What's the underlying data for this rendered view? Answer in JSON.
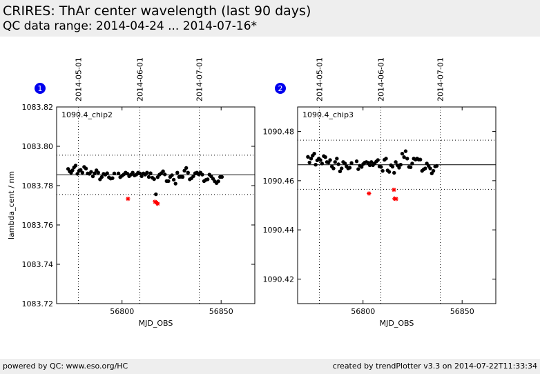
{
  "header": {
    "title": "CRIRES: ThAr center wavelength (last 90 days)",
    "subtitle": "QC data range: 2014-04-24 ... 2014-07-16*"
  },
  "footer": {
    "left": "powered by QC: www.eso.org/HC",
    "right": "created by trendPlotter v3.3 on 2014-07-22T11:33:34"
  },
  "colors": {
    "point": "#000000",
    "outlier": "#ff0000",
    "badge": "#0000ee",
    "panel_bg": "#eeeeee"
  },
  "chart_data": [
    {
      "type": "scatter",
      "badge": "1",
      "label": "1090.4_chip2",
      "xlabel": "MJD_OBS",
      "ylabel": "lambda_cent / nm",
      "xlim": [
        56767,
        56867
      ],
      "ylim": [
        1083.72,
        1083.82
      ],
      "xticks": [
        56800,
        56850
      ],
      "yticks": [
        1083.72,
        1083.74,
        1083.76,
        1083.78,
        1083.8,
        1083.82
      ],
      "ytick_decimals": 2,
      "date_markers": [
        {
          "label": "2014-05-01",
          "mjd": 56778
        },
        {
          "label": "2014-06-01",
          "mjd": 56809
        },
        {
          "label": "2014-07-01",
          "mjd": 56839
        }
      ],
      "mean": 1083.7855,
      "band": [
        1083.7755,
        1083.7955
      ],
      "points": [
        [
          56772.8,
          1083.7885
        ],
        [
          56773.6,
          1083.7872
        ],
        [
          56774.3,
          1083.7866
        ],
        [
          56775.0,
          1083.7878
        ],
        [
          56775.8,
          1083.7893
        ],
        [
          56776.6,
          1083.7902
        ],
        [
          56777.5,
          1083.786
        ],
        [
          56778.3,
          1083.7875
        ],
        [
          56779.1,
          1083.788
        ],
        [
          56780.0,
          1083.7866
        ],
        [
          56780.9,
          1083.7895
        ],
        [
          56781.8,
          1083.7887
        ],
        [
          56782.7,
          1083.7862
        ],
        [
          56783.5,
          1083.786
        ],
        [
          56784.4,
          1083.787
        ],
        [
          56785.3,
          1083.7847
        ],
        [
          56786.2,
          1083.7863
        ],
        [
          56787.1,
          1083.7878
        ],
        [
          56788.0,
          1083.7866
        ],
        [
          56788.9,
          1083.7832
        ],
        [
          56789.8,
          1083.7844
        ],
        [
          56790.7,
          1083.786
        ],
        [
          56791.6,
          1083.7856
        ],
        [
          56792.5,
          1083.7863
        ],
        [
          56793.4,
          1083.7842
        ],
        [
          56794.3,
          1083.7836
        ],
        [
          56795.2,
          1083.7838
        ],
        [
          56796.1,
          1083.7862
        ],
        [
          56798.2,
          1083.7862
        ],
        [
          56799.1,
          1083.7843
        ],
        [
          56800.0,
          1083.785
        ],
        [
          56800.9,
          1083.7857
        ],
        [
          56801.8,
          1083.7866
        ],
        [
          56802.7,
          1083.7861
        ],
        [
          56803.6,
          1083.7848
        ],
        [
          56804.5,
          1083.7856
        ],
        [
          56805.4,
          1083.7866
        ],
        [
          56806.3,
          1083.7852
        ],
        [
          56807.2,
          1083.7856
        ],
        [
          56808.1,
          1083.7866
        ],
        [
          56809.0,
          1083.7862
        ],
        [
          56809.9,
          1083.7848
        ],
        [
          56810.8,
          1083.7862
        ],
        [
          56811.7,
          1083.7856
        ],
        [
          56812.6,
          1083.7866
        ],
        [
          56813.5,
          1083.7844
        ],
        [
          56814.4,
          1083.7863
        ],
        [
          56815.3,
          1083.784
        ],
        [
          56816.2,
          1083.7833
        ],
        [
          56817.1,
          1083.7756
        ],
        [
          56818.0,
          1083.7843
        ],
        [
          56818.9,
          1083.7856
        ],
        [
          56819.8,
          1083.7863
        ],
        [
          56820.7,
          1083.7873
        ],
        [
          56821.6,
          1083.7857
        ],
        [
          56822.5,
          1083.7823
        ],
        [
          56823.4,
          1083.7823
        ],
        [
          56824.3,
          1083.7844
        ],
        [
          56825.2,
          1083.7853
        ],
        [
          56826.1,
          1083.783
        ],
        [
          56827.0,
          1083.781
        ],
        [
          56827.9,
          1083.7866
        ],
        [
          56828.8,
          1083.7844
        ],
        [
          56829.7,
          1083.7845
        ],
        [
          56830.6,
          1083.7844
        ],
        [
          56831.5,
          1083.7876
        ],
        [
          56832.4,
          1083.789
        ],
        [
          56833.3,
          1083.7866
        ],
        [
          56834.2,
          1083.7832
        ],
        [
          56835.1,
          1083.7838
        ],
        [
          56836.0,
          1083.7848
        ],
        [
          56836.9,
          1083.7863
        ],
        [
          56837.8,
          1083.7866
        ],
        [
          56838.7,
          1083.7857
        ],
        [
          56839.6,
          1083.7866
        ],
        [
          56840.5,
          1083.7856
        ],
        [
          56841.4,
          1083.7823
        ],
        [
          56842.3,
          1083.7829
        ],
        [
          56843.2,
          1083.7832
        ],
        [
          56844.1,
          1083.7856
        ],
        [
          56845.0,
          1083.7847
        ],
        [
          56845.9,
          1083.7835
        ],
        [
          56846.8,
          1083.7822
        ],
        [
          56847.7,
          1083.7813
        ],
        [
          56848.6,
          1083.7822
        ],
        [
          56849.5,
          1083.7844
        ],
        [
          56850.4,
          1083.7844
        ]
      ],
      "outliers": [
        [
          56803.0,
          1083.7733
        ],
        [
          56816.6,
          1083.7718
        ],
        [
          56817.3,
          1083.7714
        ],
        [
          56818.0,
          1083.7708
        ]
      ]
    },
    {
      "type": "scatter",
      "badge": "2",
      "label": "1090.4_chip3",
      "xlabel": "MJD_OBS",
      "ylabel": "",
      "xlim": [
        56767,
        56867
      ],
      "ylim": [
        1090.41,
        1090.49
      ],
      "xticks": [
        56800,
        56850
      ],
      "yticks": [
        1090.42,
        1090.44,
        1090.46,
        1090.48
      ],
      "ytick_decimals": 2,
      "date_markers": [
        {
          "label": "2014-05-01",
          "mjd": 56778
        },
        {
          "label": "2014-06-01",
          "mjd": 56809
        },
        {
          "label": "2014-07-01",
          "mjd": 56839
        }
      ],
      "mean": 1090.4665,
      "band": [
        1090.4565,
        1090.4765
      ],
      "points": [
        [
          56772.2,
          1090.4697
        ],
        [
          56773.0,
          1090.4674
        ],
        [
          56773.8,
          1090.469
        ],
        [
          56774.6,
          1090.4702
        ],
        [
          56775.4,
          1090.471
        ],
        [
          56776.1,
          1090.4665
        ],
        [
          56776.9,
          1090.4683
        ],
        [
          56777.7,
          1090.469
        ],
        [
          56778.5,
          1090.4684
        ],
        [
          56779.3,
          1090.467
        ],
        [
          56780.2,
          1090.47
        ],
        [
          56781.0,
          1090.4696
        ],
        [
          56781.8,
          1090.4676
        ],
        [
          56782.6,
          1090.4674
        ],
        [
          56783.4,
          1090.4684
        ],
        [
          56784.3,
          1090.4658
        ],
        [
          56785.1,
          1090.465
        ],
        [
          56785.9,
          1090.4676
        ],
        [
          56786.8,
          1090.469
        ],
        [
          56787.6,
          1090.4667
        ],
        [
          56788.4,
          1090.4638
        ],
        [
          56789.2,
          1090.465
        ],
        [
          56790.0,
          1090.4676
        ],
        [
          56790.9,
          1090.467
        ],
        [
          56791.7,
          1090.4658
        ],
        [
          56792.5,
          1090.465
        ],
        [
          56793.3,
          1090.4653
        ],
        [
          56794.2,
          1090.4672
        ],
        [
          56796.8,
          1090.4679
        ],
        [
          56797.6,
          1090.4647
        ],
        [
          56798.4,
          1090.4661
        ],
        [
          56799.3,
          1090.4656
        ],
        [
          56800.1,
          1090.4668
        ],
        [
          56800.9,
          1090.4674
        ],
        [
          56801.7,
          1090.4676
        ],
        [
          56802.5,
          1090.4673
        ],
        [
          56803.4,
          1090.4663
        ],
        [
          56804.2,
          1090.4676
        ],
        [
          56805.0,
          1090.4663
        ],
        [
          56805.8,
          1090.467
        ],
        [
          56806.7,
          1090.4678
        ],
        [
          56807.5,
          1090.4684
        ],
        [
          56808.3,
          1090.4658
        ],
        [
          56809.1,
          1090.4656
        ],
        [
          56809.9,
          1090.464
        ],
        [
          56810.8,
          1090.4685
        ],
        [
          56811.6,
          1090.469
        ],
        [
          56812.4,
          1090.4642
        ],
        [
          56813.2,
          1090.4636
        ],
        [
          56814.1,
          1090.4663
        ],
        [
          56814.9,
          1090.4657
        ],
        [
          56815.7,
          1090.4632
        ],
        [
          56816.5,
          1090.4676
        ],
        [
          56817.4,
          1090.4663
        ],
        [
          56818.2,
          1090.4653
        ],
        [
          56819.0,
          1090.4665
        ],
        [
          56819.8,
          1090.471
        ],
        [
          56820.7,
          1090.4696
        ],
        [
          56821.5,
          1090.472
        ],
        [
          56822.3,
          1090.469
        ],
        [
          56823.2,
          1090.4656
        ],
        [
          56824.0,
          1090.4655
        ],
        [
          56824.8,
          1090.467
        ],
        [
          56825.6,
          1090.469
        ],
        [
          56826.5,
          1090.4686
        ],
        [
          56827.3,
          1090.469
        ],
        [
          56828.1,
          1090.4686
        ],
        [
          56828.9,
          1090.4686
        ],
        [
          56829.8,
          1090.464
        ],
        [
          56830.6,
          1090.4646
        ],
        [
          56831.4,
          1090.465
        ],
        [
          56832.2,
          1090.467
        ],
        [
          56833.1,
          1090.466
        ],
        [
          56833.9,
          1090.465
        ],
        [
          56834.7,
          1090.463
        ],
        [
          56835.5,
          1090.464
        ],
        [
          56836.4,
          1090.4658
        ],
        [
          56837.2,
          1090.466
        ]
      ],
      "outliers": [
        [
          56803.0,
          1090.4548
        ],
        [
          56815.6,
          1090.4563
        ],
        [
          56815.9,
          1090.4527
        ],
        [
          56816.7,
          1090.4526
        ]
      ]
    }
  ]
}
